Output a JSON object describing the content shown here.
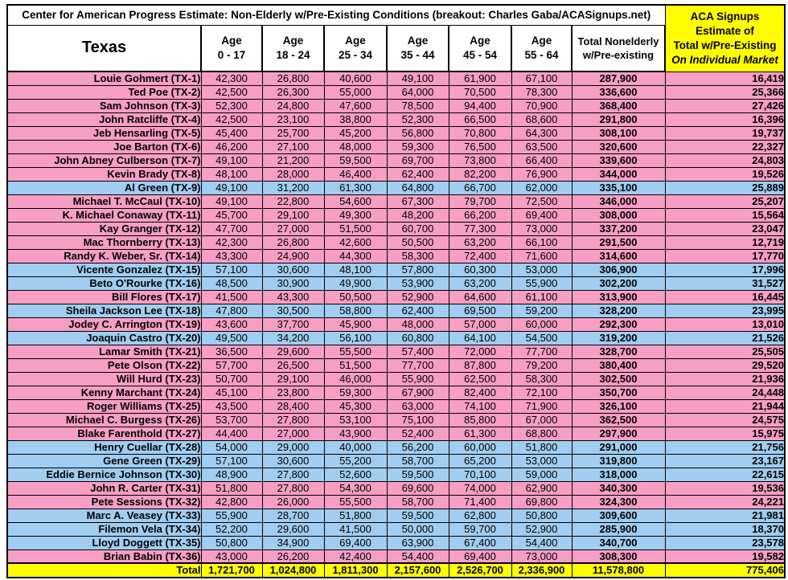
{
  "title": "Center for American Progress Estimate: Non-Elderly w/Pre-Existing Conditions (breakout: Charles Gaba/ACASignups.net)",
  "header": {
    "state": "Texas",
    "age_columns": [
      {
        "line1": "Age",
        "line2": "0 - 17"
      },
      {
        "line1": "Age",
        "line2": "18 - 24"
      },
      {
        "line1": "Age",
        "line2": "25 - 34"
      },
      {
        "line1": "Age",
        "line2": "35 - 44"
      },
      {
        "line1": "Age",
        "line2": "45 - 54"
      },
      {
        "line1": "Age",
        "line2": "55 - 64"
      }
    ],
    "total_lines": [
      "Total Nonelderly",
      "w/Pre-existing"
    ],
    "aca_lines": [
      "ACA Signups",
      "Estimate of",
      "Total w/Pre-Existing",
      "On Individual Market"
    ]
  },
  "colors": {
    "gop_row_pink": "#F79EC4",
    "dem_row_blue": "#A0CDF0",
    "highlight_yellow": "#FFFF00"
  },
  "rows": [
    {
      "name": "Louie Gohmert (TX-1)",
      "party": "R",
      "values": [
        "42,300",
        "26,800",
        "40,600",
        "49,100",
        "61,900",
        "67,100",
        "287,900",
        "16,419"
      ]
    },
    {
      "name": "Ted Poe (TX-2)",
      "party": "R",
      "values": [
        "42,500",
        "26,300",
        "55,000",
        "64,000",
        "70,500",
        "78,300",
        "336,600",
        "25,366"
      ]
    },
    {
      "name": "Sam Johnson (TX-3)",
      "party": "R",
      "values": [
        "52,300",
        "24,800",
        "47,600",
        "78,500",
        "94,400",
        "70,900",
        "368,400",
        "27,426"
      ]
    },
    {
      "name": "John Ratcliffe (TX-4)",
      "party": "R",
      "values": [
        "42,500",
        "23,100",
        "38,800",
        "52,300",
        "66,500",
        "68,600",
        "291,800",
        "16,396"
      ]
    },
    {
      "name": "Jeb Hensarling (TX-5)",
      "party": "R",
      "values": [
        "45,400",
        "25,700",
        "45,200",
        "56,800",
        "70,800",
        "64,300",
        "308,100",
        "19,737"
      ]
    },
    {
      "name": "Joe Barton (TX-6)",
      "party": "R",
      "values": [
        "46,200",
        "27,100",
        "48,000",
        "59,300",
        "76,500",
        "63,500",
        "320,600",
        "22,327"
      ]
    },
    {
      "name": "John Abney Culberson (TX-7)",
      "party": "R",
      "values": [
        "49,100",
        "21,200",
        "59,500",
        "69,700",
        "73,800",
        "66,400",
        "339,600",
        "24,803"
      ]
    },
    {
      "name": "Kevin Brady (TX-8)",
      "party": "R",
      "values": [
        "48,100",
        "28,000",
        "46,400",
        "62,400",
        "82,200",
        "76,900",
        "344,000",
        "19,526"
      ]
    },
    {
      "name": "Al Green (TX-9)",
      "party": "D",
      "values": [
        "49,100",
        "31,200",
        "61,300",
        "64,800",
        "66,700",
        "62,000",
        "335,100",
        "25,889"
      ]
    },
    {
      "name": "Michael T. McCaul (TX-10)",
      "party": "R",
      "values": [
        "49,100",
        "22,800",
        "54,600",
        "67,300",
        "79,700",
        "72,500",
        "346,000",
        "25,207"
      ]
    },
    {
      "name": "K. Michael Conaway (TX-11)",
      "party": "R",
      "values": [
        "45,700",
        "29,100",
        "49,300",
        "48,200",
        "66,200",
        "69,400",
        "308,000",
        "15,564"
      ]
    },
    {
      "name": "Kay Granger (TX-12)",
      "party": "R",
      "values": [
        "47,700",
        "27,000",
        "51,500",
        "60,700",
        "77,300",
        "73,000",
        "337,200",
        "23,047"
      ]
    },
    {
      "name": "Mac Thornberry (TX-13)",
      "party": "R",
      "values": [
        "42,300",
        "26,800",
        "42,600",
        "50,500",
        "63,200",
        "66,100",
        "291,500",
        "12,719"
      ]
    },
    {
      "name": "Randy K. Weber, Sr. (TX-14)",
      "party": "R",
      "values": [
        "43,300",
        "24,900",
        "44,300",
        "58,300",
        "72,400",
        "71,600",
        "314,600",
        "17,770"
      ]
    },
    {
      "name": "Vicente Gonzalez (TX-15)",
      "party": "D",
      "values": [
        "57,100",
        "30,600",
        "48,100",
        "57,800",
        "60,300",
        "53,000",
        "306,900",
        "17,996"
      ]
    },
    {
      "name": "Beto O'Rourke (TX-16)",
      "party": "D",
      "values": [
        "48,500",
        "30,900",
        "49,900",
        "53,900",
        "63,200",
        "55,900",
        "302,200",
        "31,527"
      ]
    },
    {
      "name": "Bill Flores (TX-17)",
      "party": "R",
      "values": [
        "41,500",
        "43,300",
        "50,500",
        "52,900",
        "64,600",
        "61,100",
        "313,900",
        "16,445"
      ]
    },
    {
      "name": "Sheila Jackson Lee (TX-18)",
      "party": "D",
      "values": [
        "47,800",
        "30,500",
        "58,800",
        "62,400",
        "69,500",
        "59,200",
        "328,200",
        "23,995"
      ]
    },
    {
      "name": "Jodey C. Arrington (TX-19)",
      "party": "R",
      "values": [
        "43,600",
        "37,700",
        "45,900",
        "48,000",
        "57,000",
        "60,000",
        "292,300",
        "13,010"
      ]
    },
    {
      "name": "Joaquin Castro (TX-20)",
      "party": "D",
      "values": [
        "49,500",
        "34,200",
        "56,100",
        "60,800",
        "64,100",
        "54,500",
        "319,200",
        "21,526"
      ]
    },
    {
      "name": "Lamar Smith (TX-21)",
      "party": "R",
      "values": [
        "36,500",
        "29,600",
        "55,500",
        "57,400",
        "72,000",
        "77,700",
        "328,700",
        "25,505"
      ]
    },
    {
      "name": "Pete Olson (TX-22)",
      "party": "R",
      "values": [
        "57,700",
        "26,500",
        "51,500",
        "77,700",
        "87,800",
        "79,200",
        "380,400",
        "29,520"
      ]
    },
    {
      "name": "Will Hurd (TX-23)",
      "party": "R",
      "values": [
        "50,700",
        "29,100",
        "46,000",
        "55,900",
        "62,500",
        "58,300",
        "302,500",
        "21,936"
      ]
    },
    {
      "name": "Kenny Marchant (TX-24)",
      "party": "R",
      "values": [
        "45,100",
        "23,800",
        "59,300",
        "67,900",
        "82,400",
        "72,100",
        "350,700",
        "24,448"
      ]
    },
    {
      "name": "Roger Williams (TX-25)",
      "party": "R",
      "values": [
        "43,500",
        "28,400",
        "45,300",
        "63,000",
        "74,100",
        "71,900",
        "326,100",
        "21,944"
      ]
    },
    {
      "name": "Michael C. Burgess (TX-26)",
      "party": "R",
      "values": [
        "53,700",
        "27,800",
        "53,100",
        "75,100",
        "85,800",
        "67,000",
        "362,500",
        "24,575"
      ]
    },
    {
      "name": "Blake Farenthold (TX-27)",
      "party": "R",
      "values": [
        "44,400",
        "27,000",
        "43,900",
        "52,400",
        "61,300",
        "68,800",
        "297,900",
        "15,975"
      ]
    },
    {
      "name": "Henry Cuellar (TX-28)",
      "party": "D",
      "values": [
        "54,000",
        "29,000",
        "40,000",
        "56,200",
        "60,000",
        "51,800",
        "291,000",
        "21,756"
      ]
    },
    {
      "name": "Gene Green (TX-29)",
      "party": "D",
      "values": [
        "57,100",
        "30,600",
        "55,200",
        "58,700",
        "65,200",
        "53,000",
        "319,800",
        "23,167"
      ]
    },
    {
      "name": "Eddie Bernice Johnson (TX-30)",
      "party": "D",
      "values": [
        "48,900",
        "27,800",
        "52,600",
        "59,500",
        "70,100",
        "59,000",
        "318,000",
        "22,615"
      ]
    },
    {
      "name": "John R. Carter (TX-31)",
      "party": "R",
      "values": [
        "51,800",
        "27,800",
        "54,300",
        "69,600",
        "74,000",
        "62,900",
        "340,300",
        "19,536"
      ]
    },
    {
      "name": "Pete Sessions (TX-32)",
      "party": "R",
      "values": [
        "42,800",
        "26,000",
        "55,500",
        "58,700",
        "71,400",
        "69,800",
        "324,300",
        "24,221"
      ]
    },
    {
      "name": "Marc A. Veasey (TX-33)",
      "party": "D",
      "values": [
        "55,900",
        "28,700",
        "51,800",
        "59,500",
        "62,800",
        "50,800",
        "309,600",
        "21,981"
      ]
    },
    {
      "name": "Filemon Vela (TX-34)",
      "party": "D",
      "values": [
        "52,200",
        "29,600",
        "41,500",
        "50,000",
        "59,700",
        "52,900",
        "285,900",
        "18,370"
      ]
    },
    {
      "name": "Lloyd Doggett (TX-35)",
      "party": "D",
      "values": [
        "50,800",
        "34,900",
        "69,400",
        "63,900",
        "67,400",
        "54,400",
        "340,700",
        "23,578"
      ]
    },
    {
      "name": "Brian Babin (TX-36)",
      "party": "R",
      "values": [
        "43,000",
        "26,200",
        "42,400",
        "54,400",
        "69,400",
        "73,000",
        "308,300",
        "19,582"
      ]
    }
  ],
  "total_row": {
    "label": "Total",
    "values": [
      "1,721,700",
      "1,024,800",
      "1,811,300",
      "2,157,600",
      "2,526,700",
      "2,336,900",
      "11,578,800",
      "775,406"
    ]
  }
}
